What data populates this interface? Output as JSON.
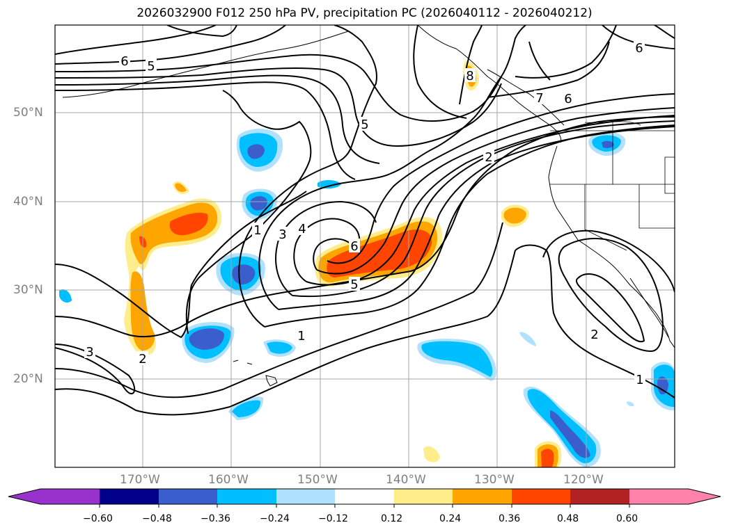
{
  "title": "2026032900 F012 250 hPa PV, precipitation PC (2026040112 - 2026040212)",
  "lat_labels": [
    "50°N",
    "40°N",
    "30°N",
    "20°N"
  ],
  "lon_labels": [
    "170°W",
    "160°W",
    "150°W",
    "140°W",
    "130°W",
    "120°W"
  ],
  "contour_labels": [
    "6",
    "5",
    "5",
    "8",
    "7",
    "6",
    "6",
    "2",
    "1",
    "3",
    "4",
    "6",
    "5",
    "1",
    "3",
    "2",
    "2",
    "1"
  ],
  "colorbar": {
    "ticks": [
      "−0.60",
      "−0.48",
      "−0.36",
      "−0.24",
      "−0.12",
      "0.12",
      "0.24",
      "0.36",
      "0.48",
      "0.60"
    ],
    "colors": [
      "#9932cc",
      "#00008b",
      "#3a5fcd",
      "#00bfff",
      "#b0e2ff",
      "#ffffff",
      "#ffec8b",
      "#ffa500",
      "#ff4500",
      "#b22222",
      "#ff82ab"
    ]
  },
  "colors": {
    "neg_strong": "#3a5fcd",
    "neg_mid": "#00bfff",
    "neg_weak": "#b0e2ff",
    "pos_weak": "#ffec8b",
    "pos_mid": "#ffa500",
    "pos_strong": "#ff4500"
  }
}
